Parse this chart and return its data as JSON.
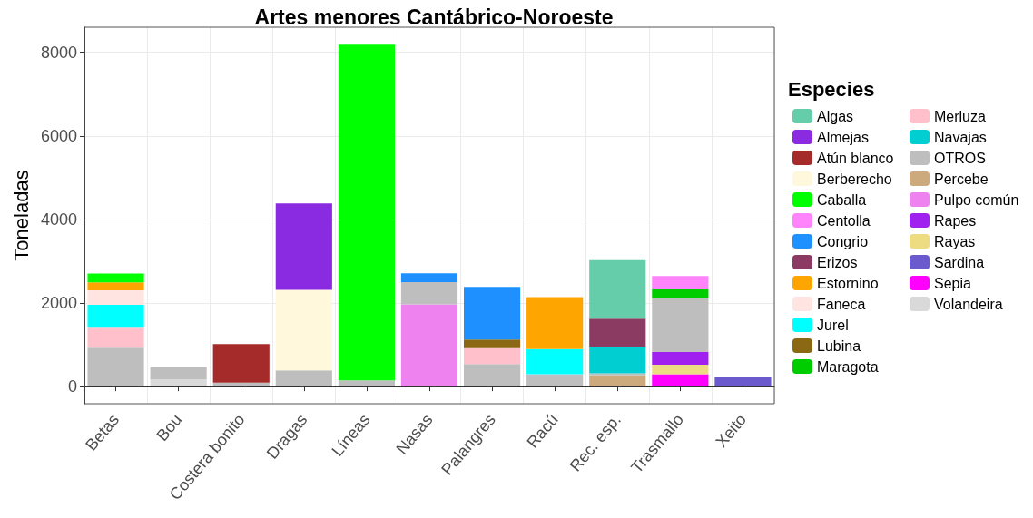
{
  "chart_data": {
    "type": "bar",
    "title": "Artes menores Cantábrico-Noroeste",
    "ylabel": "Toneladas",
    "legend_title": "Especies",
    "stacked": true,
    "grid": true,
    "legend": "right",
    "categories": [
      "Betas",
      "Bou",
      "Costera bonito",
      "Dragas",
      "Líneas",
      "Nasas",
      "Palangres",
      "Racú",
      "Rec. esp.",
      "Trasmallo",
      "Xeito"
    ],
    "ylim": [
      -410,
      8600
    ],
    "yticks": [
      0,
      2000,
      4000,
      6000,
      8000
    ],
    "series": [
      {
        "name": "Volandeira",
        "color": "#d9d9d9",
        "values": [
          null,
          170,
          null,
          null,
          null,
          null,
          null,
          null,
          null,
          null,
          null
        ]
      },
      {
        "name": "Sepia",
        "color": "#ff00ff",
        "values": [
          null,
          null,
          null,
          null,
          null,
          null,
          null,
          null,
          null,
          295,
          null
        ]
      },
      {
        "name": "Sardina",
        "color": "#6a5acd",
        "values": [
          null,
          null,
          null,
          null,
          null,
          null,
          null,
          null,
          null,
          null,
          220
        ]
      },
      {
        "name": "Rayas",
        "color": "#eedc82",
        "values": [
          null,
          null,
          null,
          null,
          null,
          null,
          null,
          null,
          null,
          230,
          null
        ]
      },
      {
        "name": "Rapes",
        "color": "#a020f0",
        "values": [
          null,
          null,
          null,
          null,
          null,
          null,
          null,
          null,
          null,
          305,
          null
        ]
      },
      {
        "name": "Pulpo común",
        "color": "#ee82ee",
        "values": [
          null,
          null,
          null,
          null,
          null,
          1970,
          null,
          null,
          null,
          null,
          null
        ]
      },
      {
        "name": "Percebe",
        "color": "#cdaa7d",
        "values": [
          null,
          null,
          null,
          null,
          null,
          null,
          null,
          null,
          270,
          null,
          null
        ]
      },
      {
        "name": "OTROS",
        "color": "#bebebe",
        "values": [
          930,
          310,
          95,
          390,
          150,
          530,
          540,
          295,
          45,
          1290,
          null
        ]
      },
      {
        "name": "Navajas",
        "color": "#00ced1",
        "values": [
          null,
          null,
          null,
          null,
          null,
          null,
          null,
          null,
          635,
          null,
          null
        ]
      },
      {
        "name": "Merluza",
        "color": "#ffc0cb",
        "values": [
          480,
          null,
          null,
          null,
          null,
          null,
          380,
          null,
          null,
          null,
          null
        ]
      },
      {
        "name": "Maragota",
        "color": "#00cd00",
        "values": [
          null,
          null,
          null,
          null,
          null,
          null,
          null,
          null,
          null,
          205,
          null
        ]
      },
      {
        "name": "Lubina",
        "color": "#8b6914",
        "values": [
          null,
          null,
          null,
          null,
          null,
          null,
          205,
          null,
          null,
          null,
          null
        ]
      },
      {
        "name": "Jurel",
        "color": "#00ffff",
        "values": [
          545,
          null,
          null,
          null,
          null,
          null,
          null,
          605,
          null,
          null,
          null
        ]
      },
      {
        "name": "Faneca",
        "color": "#ffe4e1",
        "values": [
          350,
          null,
          null,
          null,
          null,
          null,
          null,
          null,
          null,
          null,
          null
        ]
      },
      {
        "name": "Estornino",
        "color": "#ffa500",
        "values": [
          190,
          null,
          null,
          null,
          null,
          null,
          null,
          1240,
          null,
          null,
          null
        ]
      },
      {
        "name": "Erizos",
        "color": "#8b3a62",
        "values": [
          null,
          null,
          null,
          null,
          null,
          null,
          null,
          null,
          675,
          null,
          null
        ]
      },
      {
        "name": "Congrio",
        "color": "#1e90ff",
        "values": [
          null,
          null,
          null,
          null,
          null,
          210,
          1260,
          null,
          null,
          null,
          null
        ]
      },
      {
        "name": "Centolla",
        "color": "#ff83fa",
        "values": [
          null,
          null,
          null,
          null,
          null,
          null,
          null,
          null,
          null,
          320,
          null
        ]
      },
      {
        "name": "Caballa",
        "color": "#00ff00",
        "values": [
          210,
          null,
          null,
          null,
          8030,
          null,
          null,
          null,
          null,
          null,
          null
        ]
      },
      {
        "name": "Berberecho",
        "color": "#fff8dc",
        "values": [
          null,
          null,
          null,
          1925,
          null,
          null,
          null,
          null,
          null,
          null,
          null
        ]
      },
      {
        "name": "Atún blanco",
        "color": "#a52a2a",
        "values": [
          null,
          null,
          925,
          null,
          null,
          null,
          null,
          null,
          null,
          null,
          null
        ]
      },
      {
        "name": "Almejas",
        "color": "#8a2be2",
        "values": [
          null,
          null,
          null,
          2070,
          null,
          null,
          null,
          null,
          null,
          null,
          null
        ]
      },
      {
        "name": "Algas",
        "color": "#66cdaa",
        "values": [
          null,
          null,
          null,
          null,
          null,
          null,
          null,
          null,
          1400,
          null,
          null
        ]
      }
    ]
  }
}
